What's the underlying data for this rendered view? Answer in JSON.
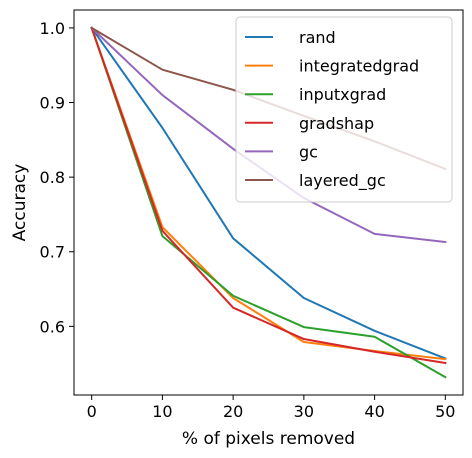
{
  "chart_data": {
    "type": "line",
    "title": "",
    "xlabel": "% of pixels removed",
    "ylabel": "Accuracy",
    "x": [
      0,
      10,
      20,
      30,
      40,
      50
    ],
    "xlim": [
      -2.5,
      52.5
    ],
    "ylim": [
      0.508,
      1.024
    ],
    "xticks": [
      0,
      10,
      20,
      30,
      40,
      50
    ],
    "yticks": [
      0.6,
      0.7,
      0.8,
      0.9,
      1.0
    ],
    "ytick_labels": [
      "0.6",
      "0.7",
      "0.8",
      "0.9",
      "1.0"
    ],
    "grid": false,
    "legend": "top-right",
    "series": [
      {
        "name": "rand",
        "color": "#1f77b4",
        "values": [
          1.0,
          0.866,
          0.718,
          0.638,
          0.594,
          0.557
        ]
      },
      {
        "name": "integratedgrad",
        "color": "#ff7f0e",
        "values": [
          1.0,
          0.733,
          0.638,
          0.579,
          0.567,
          0.556
        ]
      },
      {
        "name": "inputxgrad",
        "color": "#2ca02c",
        "values": [
          1.0,
          0.721,
          0.641,
          0.599,
          0.586,
          0.532
        ]
      },
      {
        "name": "gradshap",
        "color": "#d62728",
        "values": [
          1.0,
          0.728,
          0.625,
          0.583,
          0.566,
          0.551
        ]
      },
      {
        "name": "gc",
        "color": "#9467bd",
        "values": [
          1.0,
          0.91,
          0.838,
          0.772,
          0.724,
          0.713
        ]
      },
      {
        "name": "layered_gc",
        "color": "#8c564b",
        "values": [
          1.0,
          0.944,
          0.917,
          0.882,
          0.848,
          0.811
        ]
      }
    ]
  }
}
